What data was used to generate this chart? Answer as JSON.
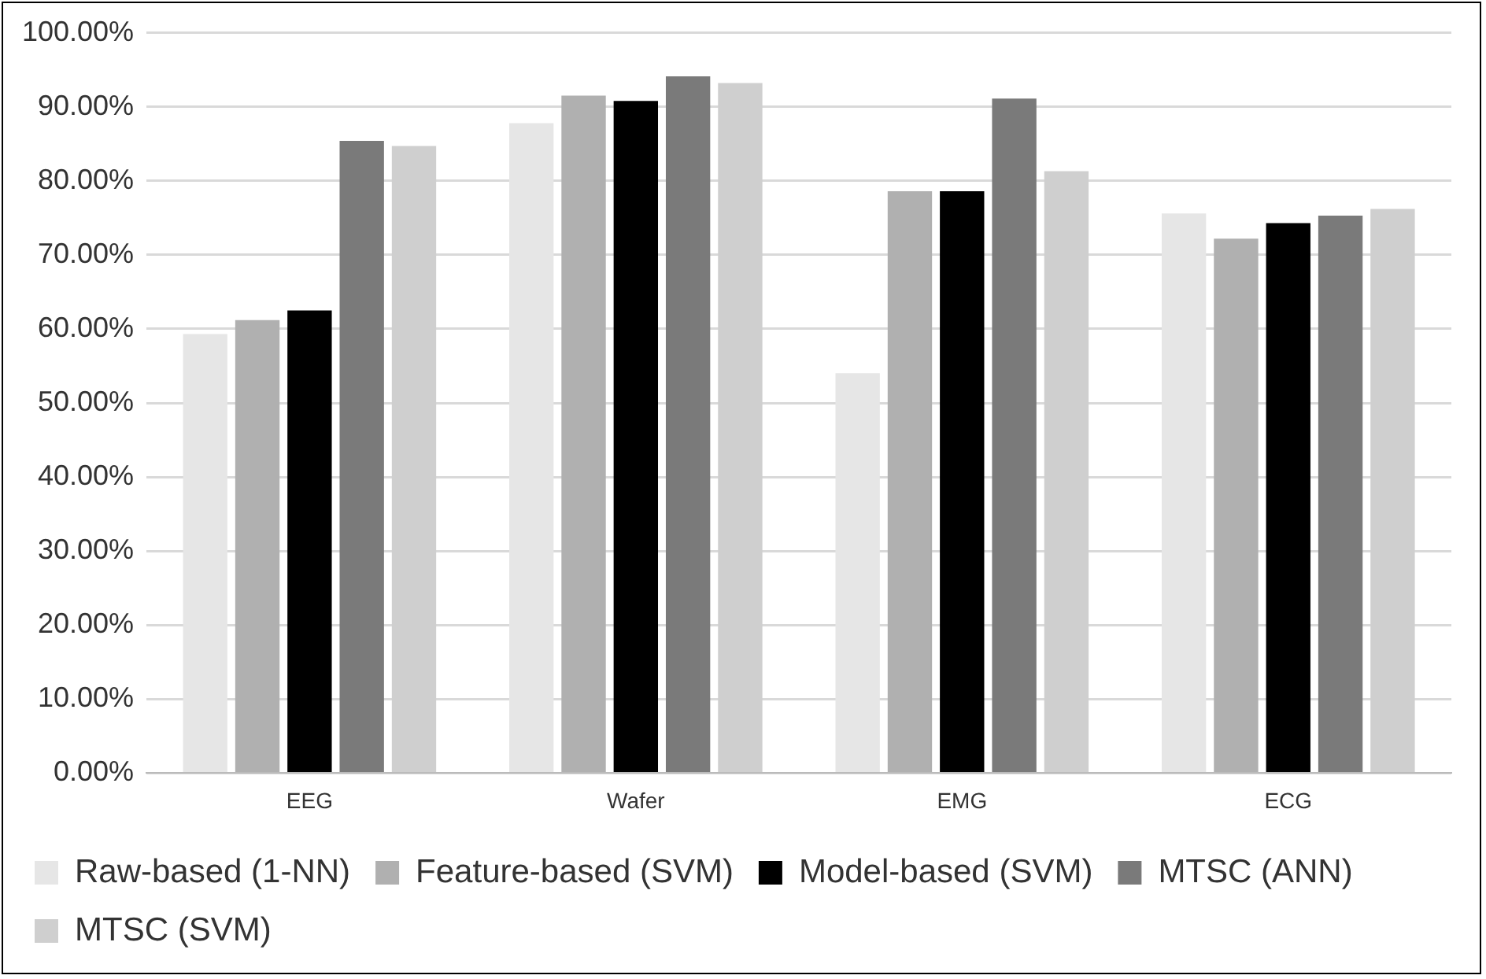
{
  "chart_data": {
    "type": "bar",
    "categories": [
      "EEG",
      "Wafer",
      "EMG",
      "ECG"
    ],
    "series": [
      {
        "name": "Raw-based (1-NN)",
        "color": "#e6e6e6",
        "values": [
          59.3,
          87.8,
          54.0,
          75.6
        ]
      },
      {
        "name": "Feature-based (SVM)",
        "color": "#b0b0b0",
        "values": [
          61.2,
          91.5,
          78.6,
          72.2
        ]
      },
      {
        "name": "Model-based (SVM)",
        "color": "#000000",
        "values": [
          62.5,
          90.8,
          78.6,
          74.3
        ]
      },
      {
        "name": "MTSC (ANN)",
        "color": "#7a7a7a",
        "values": [
          85.4,
          94.1,
          91.1,
          75.3
        ]
      },
      {
        "name": "MTSC (SVM)",
        "color": "#cfcfcf",
        "values": [
          84.7,
          93.2,
          81.3,
          76.2
        ]
      }
    ],
    "ylim": [
      0,
      100
    ],
    "yticks": [
      {
        "value": 0,
        "label": "0.00%"
      },
      {
        "value": 10,
        "label": "10.00%"
      },
      {
        "value": 20,
        "label": "20.00%"
      },
      {
        "value": 30,
        "label": "30.00%"
      },
      {
        "value": 40,
        "label": "40.00%"
      },
      {
        "value": 50,
        "label": "50.00%"
      },
      {
        "value": 60,
        "label": "60.00%"
      },
      {
        "value": 70,
        "label": "70.00%"
      },
      {
        "value": 80,
        "label": "80.00%"
      },
      {
        "value": 90,
        "label": "90.00%"
      },
      {
        "value": 100,
        "label": "100.00%"
      }
    ],
    "grid": "y",
    "legend": "bottom"
  }
}
